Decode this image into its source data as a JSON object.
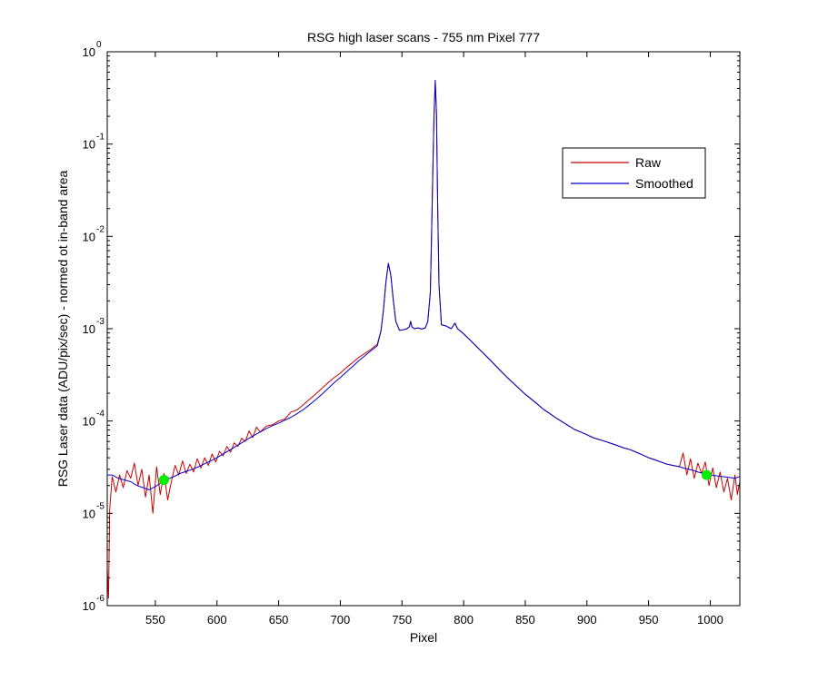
{
  "chart_data": {
    "type": "line",
    "title": "RSG high laser scans  - 755 nm    Pixel 777",
    "xlabel": "Pixel",
    "ylabel": "RSG Laser data (ADU/pix/sec) - normed ot in-band area",
    "xlim": [
      511,
      1024
    ],
    "ylim": [
      1e-06,
      1
    ],
    "yscale": "log",
    "grid": false,
    "legend_position": "top-right",
    "x_ticks": [
      550,
      600,
      650,
      700,
      750,
      800,
      850,
      900,
      950,
      1000
    ],
    "y_ticks": [
      {
        "value": 1e-06,
        "base": "10",
        "exp": "-6"
      },
      {
        "value": 1e-05,
        "base": "10",
        "exp": "-5"
      },
      {
        "value": 0.0001,
        "base": "10",
        "exp": "-4"
      },
      {
        "value": 0.001,
        "base": "10",
        "exp": "-3"
      },
      {
        "value": 0.01,
        "base": "10",
        "exp": "-2"
      },
      {
        "value": 0.1,
        "base": "10",
        "exp": "-1"
      },
      {
        "value": 1,
        "base": "10",
        "exp": "0"
      }
    ],
    "series": [
      {
        "name": "Raw",
        "color": "#cc0000",
        "x": [
          511,
          512,
          513,
          515,
          518,
          521,
          524,
          527,
          530,
          533,
          536,
          539,
          542,
          545,
          548,
          551,
          554,
          557,
          560,
          563,
          566,
          569,
          572,
          575,
          578,
          581,
          584,
          587,
          590,
          593,
          596,
          599,
          602,
          605,
          608,
          611,
          614,
          617,
          620,
          623,
          626,
          629,
          632,
          635,
          640,
          645,
          650,
          655,
          660,
          665,
          670,
          675,
          680,
          685,
          690,
          695,
          700,
          705,
          710,
          715,
          720,
          725,
          730,
          733,
          735,
          737,
          739,
          741,
          743,
          745,
          748,
          751,
          754,
          756,
          757,
          758,
          760,
          763,
          766,
          769,
          771,
          773,
          774,
          775,
          776,
          777,
          778,
          779,
          780,
          782,
          785,
          790,
          793,
          795,
          800,
          805,
          810,
          815,
          820,
          825,
          830,
          835,
          840,
          845,
          850,
          855,
          860,
          865,
          870,
          875,
          880,
          885,
          890,
          895,
          900,
          905,
          910,
          915,
          920,
          925,
          930,
          935,
          940,
          945,
          950,
          955,
          960,
          965,
          970,
          975,
          978,
          981,
          984,
          987,
          990,
          993,
          996,
          999,
          1002,
          1005,
          1008,
          1011,
          1014,
          1017,
          1020,
          1022,
          1024
        ],
        "y": [
          2.5e-06,
          1.2e-06,
          1.1e-05,
          2.5e-05,
          1.7e-05,
          2.6e-05,
          1.9e-05,
          2.9e-05,
          2.4e-05,
          3.5e-05,
          2e-05,
          3e-05,
          1.5e-05,
          2.6e-05,
          1e-05,
          3.2e-05,
          1.6e-05,
          2.7e-05,
          1.4e-05,
          2.2e-05,
          3.3e-05,
          2.6e-05,
          3.7e-05,
          2.7e-05,
          3.4e-05,
          2.8e-05,
          3.9e-05,
          3.1e-05,
          4e-05,
          3.3e-05,
          4.4e-05,
          3.6e-05,
          4.7e-05,
          4.2e-05,
          5.3e-05,
          4.6e-05,
          5.8e-05,
          5.3e-05,
          6.5e-05,
          6e-05,
          7.8e-05,
          6.6e-05,
          8.6e-05,
          7.6e-05,
          8.8e-05,
          9.1e-05,
          0.0001,
          0.000105,
          0.000125,
          0.000132,
          0.00015,
          0.000172,
          0.000196,
          0.000225,
          0.00026,
          0.000295,
          0.00033,
          0.00038,
          0.00043,
          0.00049,
          0.00054,
          0.0006,
          0.00068,
          0.00095,
          0.0016,
          0.0032,
          0.0051,
          0.0038,
          0.002,
          0.0012,
          0.00096,
          0.00097,
          0.001,
          0.00105,
          0.0012,
          0.00105,
          0.001,
          0.00102,
          0.00099,
          0.00102,
          0.0012,
          0.0025,
          0.01,
          0.05,
          0.2,
          0.49,
          0.22,
          0.02,
          0.003,
          0.0011,
          0.00108,
          0.001,
          0.00115,
          0.001,
          0.00088,
          0.00076,
          0.00065,
          0.00056,
          0.00048,
          0.00041,
          0.00035,
          0.0003,
          0.00026,
          0.000225,
          0.000195,
          0.000172,
          0.000152,
          0.000133,
          0.00012,
          0.000108,
          9.8e-05,
          8.9e-05,
          8.1e-05,
          7.6e-05,
          7.1e-05,
          6.6e-05,
          6.3e-05,
          6e-05,
          5.7e-05,
          5.4e-05,
          5.1e-05,
          4.9e-05,
          4.6e-05,
          4.3e-05,
          4e-05,
          3.8e-05,
          3.6e-05,
          3.4e-05,
          3.3e-05,
          3.2e-05,
          4.5e-05,
          2.6e-05,
          3.9e-05,
          2.4e-05,
          3.5e-05,
          2.7e-05,
          3.6e-05,
          2e-05,
          3.1e-05,
          1.9e-05,
          2.8e-05,
          1.7e-05,
          2.4e-05,
          1.4e-05,
          2.6e-05,
          1.6e-05,
          2.2e-05
        ]
      },
      {
        "name": "Smoothed",
        "color": "#0000cc",
        "x": [
          511,
          515,
          520,
          525,
          530,
          535,
          540,
          545,
          550,
          555,
          560,
          565,
          570,
          575,
          580,
          585,
          590,
          595,
          600,
          605,
          610,
          615,
          620,
          625,
          630,
          635,
          640,
          645,
          650,
          655,
          660,
          665,
          670,
          675,
          680,
          685,
          690,
          695,
          700,
          705,
          710,
          715,
          720,
          725,
          730,
          733,
          735,
          737,
          739,
          741,
          743,
          745,
          748,
          751,
          754,
          756,
          757,
          758,
          760,
          763,
          766,
          769,
          771,
          773,
          774,
          775,
          776,
          777,
          778,
          779,
          780,
          782,
          785,
          790,
          793,
          795,
          800,
          805,
          810,
          815,
          820,
          825,
          830,
          835,
          840,
          845,
          850,
          855,
          860,
          865,
          870,
          875,
          880,
          885,
          890,
          895,
          900,
          905,
          910,
          915,
          920,
          925,
          930,
          935,
          940,
          945,
          950,
          955,
          960,
          965,
          970,
          975,
          980,
          985,
          990,
          995,
          1000,
          1005,
          1010,
          1015,
          1020,
          1024
        ],
        "y": [
          2.6e-05,
          2.6e-05,
          2.4e-05,
          2.3e-05,
          2.2e-05,
          2e-05,
          1.9e-05,
          1.8e-05,
          1.95e-05,
          2.15e-05,
          2.35e-05,
          2.5e-05,
          2.7e-05,
          2.85e-05,
          3e-05,
          3.2e-05,
          3.45e-05,
          3.7e-05,
          4e-05,
          4.4e-05,
          4.8e-05,
          5.3e-05,
          5.8e-05,
          6.4e-05,
          7e-05,
          7.6e-05,
          8.3e-05,
          8.9e-05,
          9.5e-05,
          0.000102,
          0.00011,
          0.00012,
          0.000133,
          0.00015,
          0.00017,
          0.000195,
          0.000225,
          0.00026,
          0.000295,
          0.00034,
          0.00039,
          0.00045,
          0.00051,
          0.00058,
          0.00065,
          0.00095,
          0.0016,
          0.0032,
          0.0051,
          0.0038,
          0.002,
          0.0012,
          0.00096,
          0.00097,
          0.001,
          0.00105,
          0.0012,
          0.00105,
          0.001,
          0.00102,
          0.00099,
          0.00102,
          0.0012,
          0.0025,
          0.01,
          0.05,
          0.2,
          0.49,
          0.22,
          0.02,
          0.003,
          0.0011,
          0.00108,
          0.001,
          0.00115,
          0.001,
          0.00088,
          0.00076,
          0.00065,
          0.00056,
          0.00048,
          0.00041,
          0.00035,
          0.0003,
          0.00026,
          0.000225,
          0.000195,
          0.000172,
          0.000152,
          0.000133,
          0.00012,
          0.000108,
          9.8e-05,
          8.9e-05,
          8.1e-05,
          7.6e-05,
          7.1e-05,
          6.6e-05,
          6.3e-05,
          6e-05,
          5.7e-05,
          5.4e-05,
          5.1e-05,
          4.9e-05,
          4.6e-05,
          4.3e-05,
          4e-05,
          3.8e-05,
          3.6e-05,
          3.4e-05,
          3.3e-05,
          3.2e-05,
          3.05e-05,
          2.95e-05,
          2.8e-05,
          2.7e-05,
          2.6e-05,
          2.55e-05,
          2.5e-05,
          2.45e-05,
          2.4e-05,
          2.5e-05
        ]
      }
    ],
    "markers": {
      "color": "#00ee00",
      "points": [
        {
          "x": 557,
          "y": 2.3e-05
        },
        {
          "x": 997,
          "y": 2.6e-05
        }
      ]
    }
  }
}
